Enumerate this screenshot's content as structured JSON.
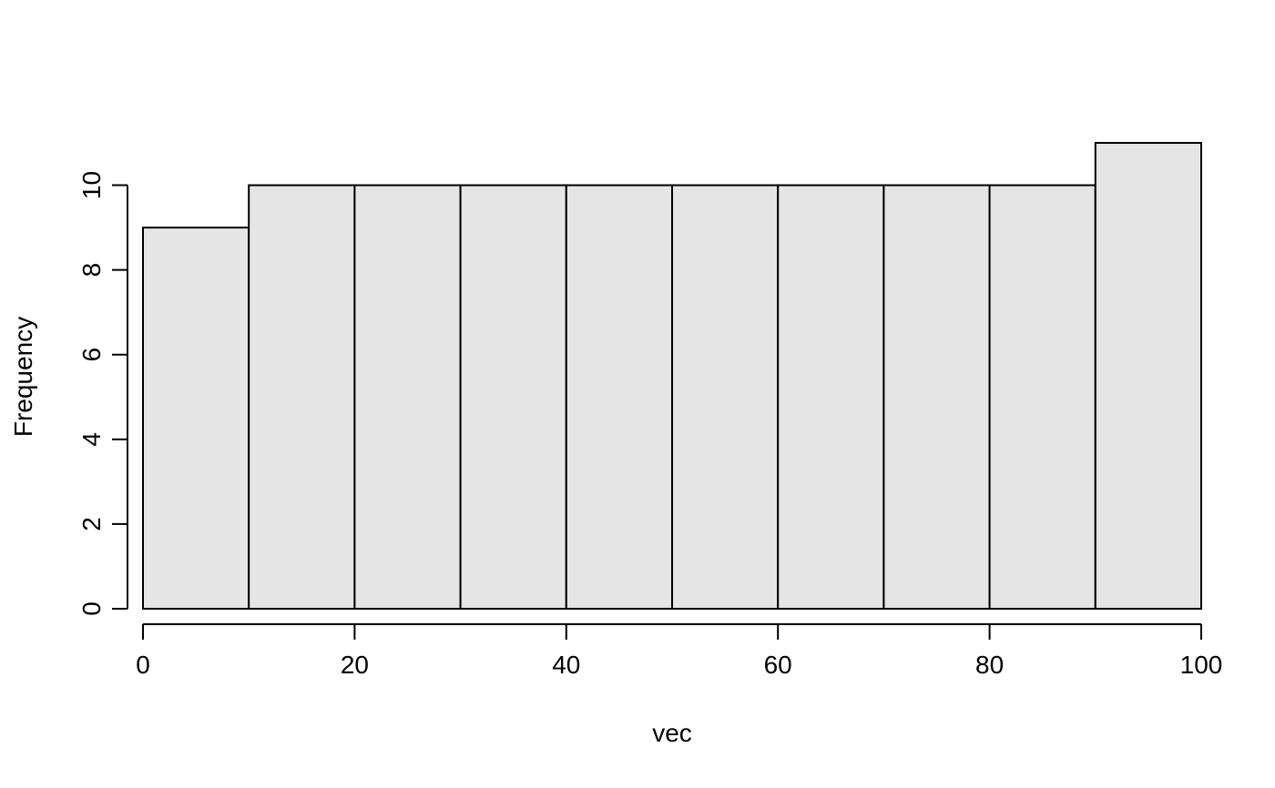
{
  "chart_data": {
    "type": "bar",
    "title": "",
    "xlabel": "vec",
    "ylabel": "Frequency",
    "bins": [
      {
        "start": 0,
        "end": 10,
        "count": 9
      },
      {
        "start": 10,
        "end": 20,
        "count": 10
      },
      {
        "start": 20,
        "end": 30,
        "count": 10
      },
      {
        "start": 30,
        "end": 40,
        "count": 10
      },
      {
        "start": 40,
        "end": 50,
        "count": 10
      },
      {
        "start": 50,
        "end": 60,
        "count": 10
      },
      {
        "start": 60,
        "end": 70,
        "count": 10
      },
      {
        "start": 70,
        "end": 80,
        "count": 10
      },
      {
        "start": 80,
        "end": 90,
        "count": 10
      },
      {
        "start": 90,
        "end": 100,
        "count": 11
      }
    ],
    "xlim": [
      0,
      100
    ],
    "ylim": [
      0,
      11
    ],
    "x_ticks": [
      0,
      20,
      40,
      60,
      80,
      100
    ],
    "y_ticks": [
      0,
      2,
      4,
      6,
      8,
      10
    ],
    "x_tick_labels": [
      "0",
      "20",
      "40",
      "60",
      "80",
      "100"
    ],
    "y_tick_labels": [
      "0",
      "2",
      "4",
      "6",
      "8",
      "10"
    ],
    "grid": false,
    "legend": "none",
    "colors": {
      "bar_fill": "#e5e5e5",
      "bar_stroke": "#000000"
    }
  }
}
